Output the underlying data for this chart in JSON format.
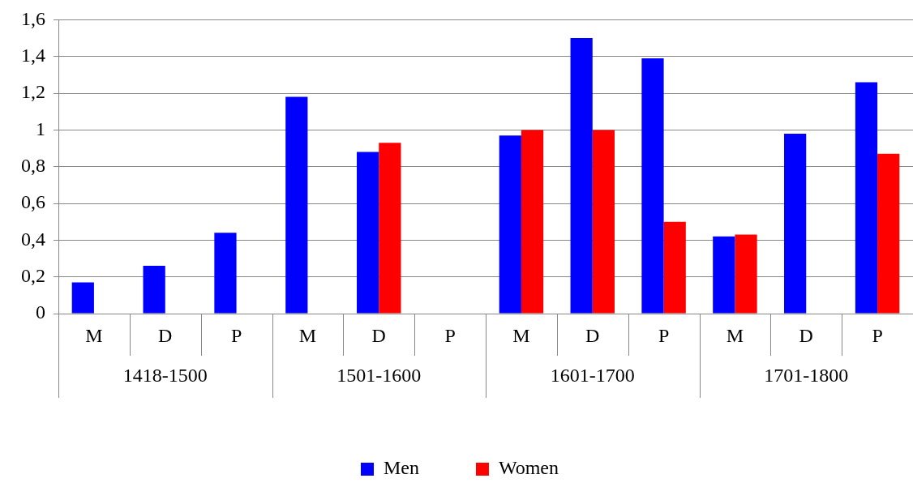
{
  "chart_data": {
    "type": "bar",
    "categories": [
      "M",
      "D",
      "P",
      "M",
      "D",
      "P",
      "M",
      "D",
      "P",
      "M",
      "D",
      "P"
    ],
    "annotations": [
      "1418-1500",
      "1501-1600",
      "1601-1700",
      "1701-1800"
    ],
    "series": [
      {
        "name": "Men",
        "color": "#0000ff",
        "values": [
          0.17,
          0.26,
          0.44,
          1.18,
          0.88,
          null,
          0.97,
          1.5,
          1.39,
          0.42,
          0.98,
          1.26
        ]
      },
      {
        "name": "Women",
        "color": "#ff0000",
        "values": [
          null,
          null,
          null,
          null,
          0.93,
          null,
          1.0,
          1.0,
          0.5,
          0.43,
          null,
          0.87
        ]
      }
    ],
    "ylim": [
      0,
      1.6
    ],
    "yticks": [
      0,
      {
        "value": 0.2,
        "label": "0,2"
      },
      {
        "value": 0.4,
        "label": "0,4"
      },
      {
        "value": 0.6,
        "label": "0,6"
      },
      {
        "value": 0.8,
        "label": "0,8"
      },
      1,
      {
        "value": 1.2,
        "label": "1,2"
      },
      {
        "value": 1.4,
        "label": "1,4"
      },
      {
        "value": 1.6,
        "label": "1,6"
      }
    ],
    "grid": "y",
    "legend": "bottom"
  }
}
